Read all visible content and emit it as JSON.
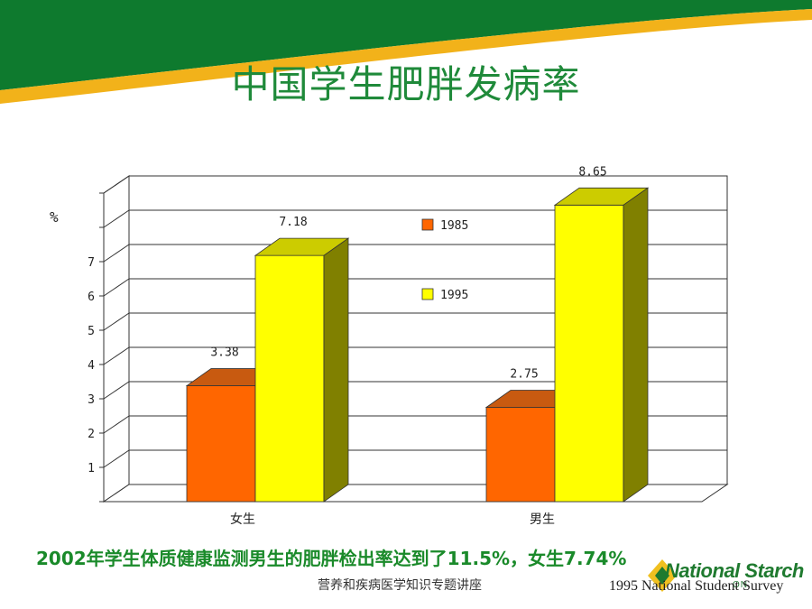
{
  "slide": {
    "title": "中国学生肥胖发病率",
    "footnote": "2002年学生体质健康监测男生的肥胖检出率达到了11.5%，女生7.74%",
    "lecture_name": "营养和疾病医学知识专题讲座",
    "source": "1995 National Student Survey",
    "logo_text": "National Starch",
    "logo_subtext": "ON",
    "colors": {
      "banner_green": "#0e7a2e",
      "banner_yellow": "#f2b21a",
      "title": "#1f8a3a",
      "footnote": "#1a8a2a"
    }
  },
  "chart_data": {
    "type": "bar",
    "unit_label": "%",
    "categories": [
      "女生",
      "男生"
    ],
    "series": [
      {
        "name": "1985",
        "values": [
          3.38,
          2.75
        ],
        "color": "#ff6600",
        "color_top": "#c85a10",
        "color_side": "#a04000",
        "show_label": [
          true,
          true
        ]
      },
      {
        "name": "1995",
        "values": [
          7.18,
          8.65
        ],
        "color": "#ffff00",
        "color_top": "#cccc00",
        "color_side": "#808000",
        "show_label": [
          true,
          true
        ]
      }
    ],
    "data_labels": {
      "series_1985": [
        "3.38",
        "2.75"
      ],
      "series_1995": [
        "7.18",
        "8.65"
      ]
    },
    "y_ticks": [
      "1",
      "2",
      "3",
      "4",
      "5",
      "6",
      "7"
    ],
    "ylim": [
      0,
      9
    ],
    "grid": true,
    "legend_position": "center"
  }
}
